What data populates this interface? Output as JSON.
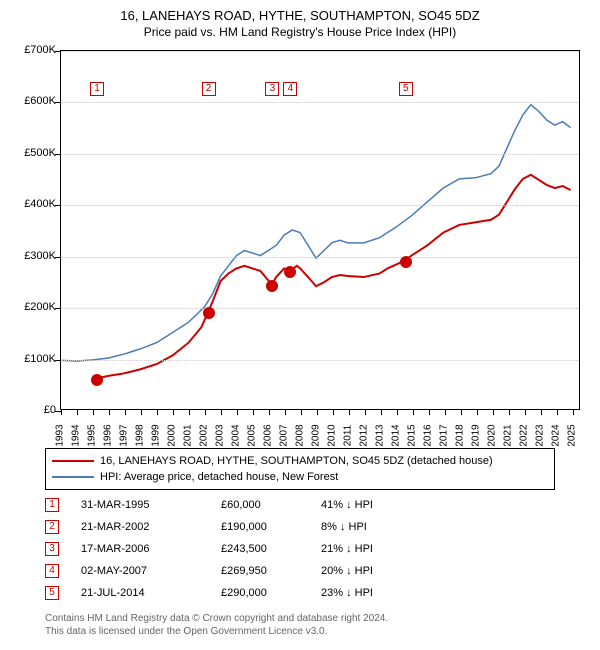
{
  "title": "16, LANEHAYS ROAD, HYTHE, SOUTHAMPTON, SO45 5DZ",
  "subtitle": "Price paid vs. HM Land Registry's House Price Index (HPI)",
  "chart": {
    "type": "line",
    "background_color": "#ffffff",
    "border_color": "#000000",
    "grid_color": "#cccccc",
    "xlim": [
      1993,
      2025.5
    ],
    "ylim": [
      0,
      700000
    ],
    "ytick_step": 100000,
    "yticks": [
      "£0",
      "£100K",
      "£200K",
      "£300K",
      "£400K",
      "£500K",
      "£600K",
      "£700K"
    ],
    "xticks": [
      "1993",
      "1994",
      "1995",
      "1996",
      "1997",
      "1998",
      "1999",
      "2000",
      "2001",
      "2002",
      "2003",
      "2004",
      "2005",
      "2006",
      "2007",
      "2008",
      "2009",
      "2010",
      "2011",
      "2012",
      "2013",
      "2014",
      "2015",
      "2016",
      "2017",
      "2018",
      "2019",
      "2020",
      "2021",
      "2022",
      "2023",
      "2024",
      "2025"
    ],
    "series": [
      {
        "id": "property",
        "label": "16, LANEHAYS ROAD, HYTHE, SOUTHAMPTON, SO45 5DZ (detached house)",
        "color": "#cc0000",
        "line_width": 2,
        "data": [
          [
            1995.25,
            60000
          ],
          [
            1996,
            65000
          ],
          [
            1997,
            70000
          ],
          [
            1998,
            78000
          ],
          [
            1999,
            88000
          ],
          [
            2000,
            105000
          ],
          [
            2001,
            130000
          ],
          [
            2001.8,
            160000
          ],
          [
            2002.22,
            190000
          ],
          [
            2002.5,
            210000
          ],
          [
            2003,
            250000
          ],
          [
            2003.5,
            265000
          ],
          [
            2004,
            275000
          ],
          [
            2004.5,
            280000
          ],
          [
            2005,
            275000
          ],
          [
            2005.5,
            270000
          ],
          [
            2006.21,
            243500
          ],
          [
            2006.5,
            258000
          ],
          [
            2007,
            275000
          ],
          [
            2007.34,
            269950
          ],
          [
            2007.8,
            280000
          ],
          [
            2008,
            275000
          ],
          [
            2008.5,
            258000
          ],
          [
            2009,
            240000
          ],
          [
            2009.5,
            248000
          ],
          [
            2010,
            258000
          ],
          [
            2010.5,
            262000
          ],
          [
            2011,
            260000
          ],
          [
            2012,
            258000
          ],
          [
            2013,
            265000
          ],
          [
            2013.5,
            275000
          ],
          [
            2014,
            282000
          ],
          [
            2014.55,
            290000
          ],
          [
            2015,
            300000
          ],
          [
            2016,
            320000
          ],
          [
            2017,
            345000
          ],
          [
            2018,
            360000
          ],
          [
            2019,
            365000
          ],
          [
            2020,
            370000
          ],
          [
            2020.5,
            380000
          ],
          [
            2021,
            405000
          ],
          [
            2021.5,
            430000
          ],
          [
            2022,
            450000
          ],
          [
            2022.5,
            458000
          ],
          [
            2023,
            448000
          ],
          [
            2023.5,
            438000
          ],
          [
            2024,
            432000
          ],
          [
            2024.5,
            436000
          ],
          [
            2025,
            428000
          ]
        ]
      },
      {
        "id": "hpi",
        "label": "HPI: Average price, detached house, New Forest",
        "color": "#4a7bb7",
        "line_width": 1.5,
        "data": [
          [
            1993,
            95000
          ],
          [
            1994,
            94000
          ],
          [
            1995,
            96000
          ],
          [
            1996,
            100000
          ],
          [
            1997,
            108000
          ],
          [
            1998,
            118000
          ],
          [
            1999,
            130000
          ],
          [
            2000,
            150000
          ],
          [
            2001,
            170000
          ],
          [
            2002,
            200000
          ],
          [
            2002.5,
            225000
          ],
          [
            2003,
            260000
          ],
          [
            2003.5,
            280000
          ],
          [
            2004,
            300000
          ],
          [
            2004.5,
            310000
          ],
          [
            2005,
            305000
          ],
          [
            2005.5,
            300000
          ],
          [
            2006,
            310000
          ],
          [
            2006.5,
            320000
          ],
          [
            2007,
            340000
          ],
          [
            2007.5,
            350000
          ],
          [
            2008,
            345000
          ],
          [
            2008.5,
            320000
          ],
          [
            2009,
            295000
          ],
          [
            2009.5,
            310000
          ],
          [
            2010,
            325000
          ],
          [
            2010.5,
            330000
          ],
          [
            2011,
            325000
          ],
          [
            2012,
            325000
          ],
          [
            2013,
            335000
          ],
          [
            2014,
            355000
          ],
          [
            2015,
            378000
          ],
          [
            2016,
            405000
          ],
          [
            2017,
            432000
          ],
          [
            2018,
            450000
          ],
          [
            2019,
            452000
          ],
          [
            2020,
            460000
          ],
          [
            2020.5,
            475000
          ],
          [
            2021,
            510000
          ],
          [
            2021.5,
            545000
          ],
          [
            2022,
            575000
          ],
          [
            2022.5,
            595000
          ],
          [
            2023,
            582000
          ],
          [
            2023.5,
            565000
          ],
          [
            2024,
            555000
          ],
          [
            2024.5,
            562000
          ],
          [
            2025,
            550000
          ]
        ]
      }
    ],
    "sale_markers": [
      {
        "n": "1",
        "x": 1995.25,
        "y": 60000
      },
      {
        "n": "2",
        "x": 2002.22,
        "y": 190000
      },
      {
        "n": "3",
        "x": 2006.21,
        "y": 243500
      },
      {
        "n": "4",
        "x": 2007.34,
        "y": 269950
      },
      {
        "n": "5",
        "x": 2014.55,
        "y": 290000
      }
    ],
    "marker_top_y": 640000
  },
  "legend": {
    "items": [
      {
        "color": "#cc0000",
        "width": 2.5,
        "label": "16, LANEHAYS ROAD, HYTHE, SOUTHAMPTON, SO45 5DZ (detached house)"
      },
      {
        "color": "#4a7bb7",
        "width": 1.5,
        "label": "HPI: Average price, detached house, New Forest"
      }
    ]
  },
  "sales": [
    {
      "n": "1",
      "date": "31-MAR-1995",
      "price": "£60,000",
      "diff": "41% ↓ HPI"
    },
    {
      "n": "2",
      "date": "21-MAR-2002",
      "price": "£190,000",
      "diff": "8% ↓ HPI"
    },
    {
      "n": "3",
      "date": "17-MAR-2006",
      "price": "£243,500",
      "diff": "21% ↓ HPI"
    },
    {
      "n": "4",
      "date": "02-MAY-2007",
      "price": "£269,950",
      "diff": "20% ↓ HPI"
    },
    {
      "n": "5",
      "date": "21-JUL-2014",
      "price": "£290,000",
      "diff": "23% ↓ HPI"
    }
  ],
  "footer": {
    "line1": "Contains HM Land Registry data © Crown copyright and database right 2024.",
    "line2": "This data is licensed under the Open Government Licence v3.0."
  },
  "fonts": {
    "title_size": 13,
    "subtitle_size": 12,
    "axis_size": 11,
    "legend_size": 11,
    "table_size": 11,
    "footer_size": 10
  }
}
